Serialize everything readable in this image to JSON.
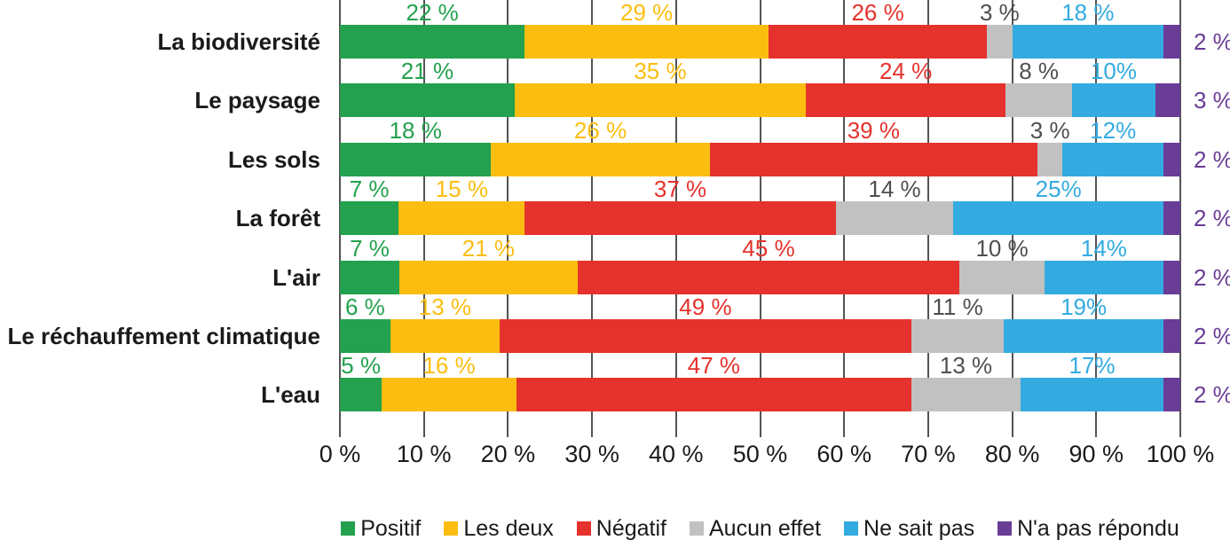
{
  "chart_data": {
    "type": "bar",
    "orientation": "horizontal",
    "stacked": true,
    "title": "",
    "xlabel": "",
    "ylabel": "",
    "xlim": [
      0,
      100
    ],
    "grid": "vertical",
    "legend_position": "bottom",
    "categories": [
      "La biodiversité",
      "Le paysage",
      "Les sols",
      "La forêt",
      "L'air",
      "Le réchauffement climatique",
      "L'eau"
    ],
    "x_ticks": [
      "0 %",
      "10 %",
      "20 %",
      "30 %",
      "40 %",
      "50 %",
      "60 %",
      "70 %",
      "80 %",
      "90 %",
      "100 %"
    ],
    "series": [
      {
        "name": "Positif",
        "color": "#23A14E",
        "label_color": "#23A14E",
        "values": [
          22,
          21,
          18,
          7,
          7,
          6,
          5
        ],
        "labels": [
          "22 %",
          "21 %",
          "18 %",
          "7 %",
          "7 %",
          "6 %",
          "5 %"
        ]
      },
      {
        "name": "Les deux",
        "color": "#FBBE10",
        "label_color": "#FBBE10",
        "values": [
          29,
          35,
          26,
          15,
          21,
          13,
          16
        ],
        "labels": [
          "29 %",
          "35 %",
          "26 %",
          "15 %",
          "21 %",
          "13 %",
          "16 %"
        ]
      },
      {
        "name": "Négatif",
        "color": "#E5322C",
        "label_color": "#E5322C",
        "values": [
          26,
          24,
          39,
          37,
          45,
          49,
          47
        ],
        "labels": [
          "26 %",
          "24 %",
          "39 %",
          "37 %",
          "45 %",
          "49 %",
          "47 %"
        ]
      },
      {
        "name": "Aucun effet",
        "color": "#C2C1C1",
        "label_color": "#4F4F51",
        "values": [
          3,
          8,
          3,
          14,
          10,
          11,
          13
        ],
        "labels": [
          "3 %",
          "8 %",
          "3 %",
          "14 %",
          "10 %",
          "11 %",
          "13 %"
        ]
      },
      {
        "name": "Ne sait pas",
        "color": "#33ABE0",
        "label_color": "#33ABE0",
        "values": [
          18,
          10,
          12,
          25,
          14,
          19,
          17
        ],
        "labels": [
          "18 %",
          "10%",
          "12%",
          "25%",
          "14%",
          "19%",
          "17%"
        ]
      },
      {
        "name": "N'a pas répondu",
        "color": "#693C96",
        "label_color": "#693C96",
        "label_outside": true,
        "values": [
          2,
          3,
          2,
          2,
          2,
          2,
          2
        ],
        "labels": [
          "2 %",
          "3 %",
          "2 %",
          "2 %",
          "2 %",
          "2 %",
          "2 %"
        ]
      }
    ]
  },
  "colors": {
    "background": "#FFFFFF",
    "gridline": "#545456",
    "axis_text": "#1A1A1A",
    "category_text": "#1A1A1A",
    "legend_text": "#1A1A1A"
  }
}
